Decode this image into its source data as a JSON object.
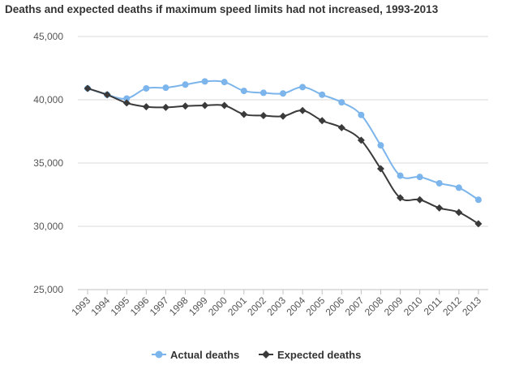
{
  "chart_data": {
    "type": "line",
    "title": "Deaths and expected deaths if maximum speed limits had not increased, 1993-2013",
    "xlabel": "",
    "ylabel": "",
    "ylim": [
      25000,
      45000
    ],
    "yticks": [
      25000,
      30000,
      35000,
      40000,
      45000
    ],
    "ytick_labels": [
      "25,000",
      "30,000",
      "35,000",
      "40,000",
      "45,000"
    ],
    "categories": [
      "1993",
      "1994",
      "1995",
      "1996",
      "1997",
      "1998",
      "1999",
      "2000",
      "2001",
      "2002",
      "2003",
      "2004",
      "2005",
      "2006",
      "2007",
      "2008",
      "2009",
      "2010",
      "2011",
      "2012",
      "2013"
    ],
    "series": [
      {
        "name": "Actual deaths",
        "color": "#7cb5ec",
        "marker": "circle",
        "values": [
          40900,
          40400,
          40100,
          40900,
          40950,
          41200,
          41450,
          41400,
          40700,
          40550,
          40500,
          41000,
          40400,
          39800,
          38800,
          36400,
          34000,
          33900,
          33400,
          33050,
          32100
        ]
      },
      {
        "name": "Expected deaths",
        "color": "#3a3a3a",
        "marker": "diamond",
        "values": [
          40900,
          40400,
          39750,
          39450,
          39400,
          39500,
          39550,
          39550,
          38850,
          38750,
          38700,
          39150,
          38350,
          37800,
          36800,
          34550,
          32250,
          32100,
          31450,
          31100,
          30200
        ]
      }
    ],
    "legend_position": "bottom-center",
    "grid": true
  }
}
